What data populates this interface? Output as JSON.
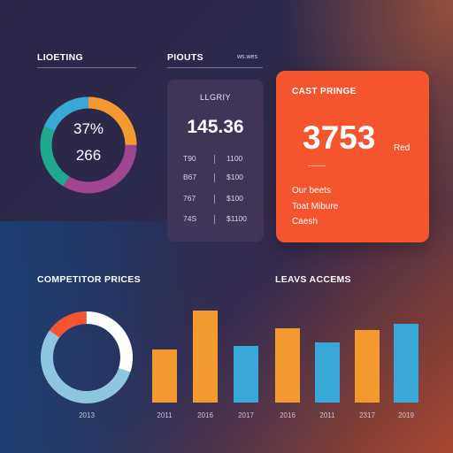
{
  "left_section": {
    "title": "LIOETING",
    "ring_pct": "37%",
    "ring_value": "266"
  },
  "mid_section": {
    "title": "PIOUTS",
    "tag": "ws.wes"
  },
  "panel": {
    "label": "LLGRIY",
    "value": "145.36",
    "rows": [
      {
        "a": "T90",
        "b": "1100"
      },
      {
        "a": "B67",
        "b": "$100"
      },
      {
        "a": "767",
        "b": "$100"
      },
      {
        "a": "74S",
        "b": "$1100"
      }
    ]
  },
  "card": {
    "label": "CAST PRINGE",
    "value": "3753",
    "suffix": "Red",
    "lines": [
      "Our beets",
      "Toat Mibure",
      "Caesh"
    ]
  },
  "competitor": {
    "title": "COMPETITOR PRICES"
  },
  "leads": {
    "title": "LEAVS ACCEMS"
  },
  "chart_data": {
    "type": "bar",
    "categories": [
      "2011",
      "2016",
      "2017",
      "2016",
      "2011",
      "2317",
      "2019"
    ],
    "values": [
      60,
      104,
      64,
      84,
      68,
      82,
      89
    ],
    "ylim": [
      0,
      110
    ],
    "colors": [
      "#f39a2e",
      "#f39a2e",
      "#38a9d6",
      "#f39a2e",
      "#38a9d6",
      "#f39a2e",
      "#38a9d6"
    ]
  },
  "donut_bottom_label": "2013",
  "colors": {
    "orange": "#f39a2e",
    "blue": "#38a9d6",
    "teal": "#1fa98f",
    "purple": "#a0458f",
    "card": "#f4552e"
  }
}
